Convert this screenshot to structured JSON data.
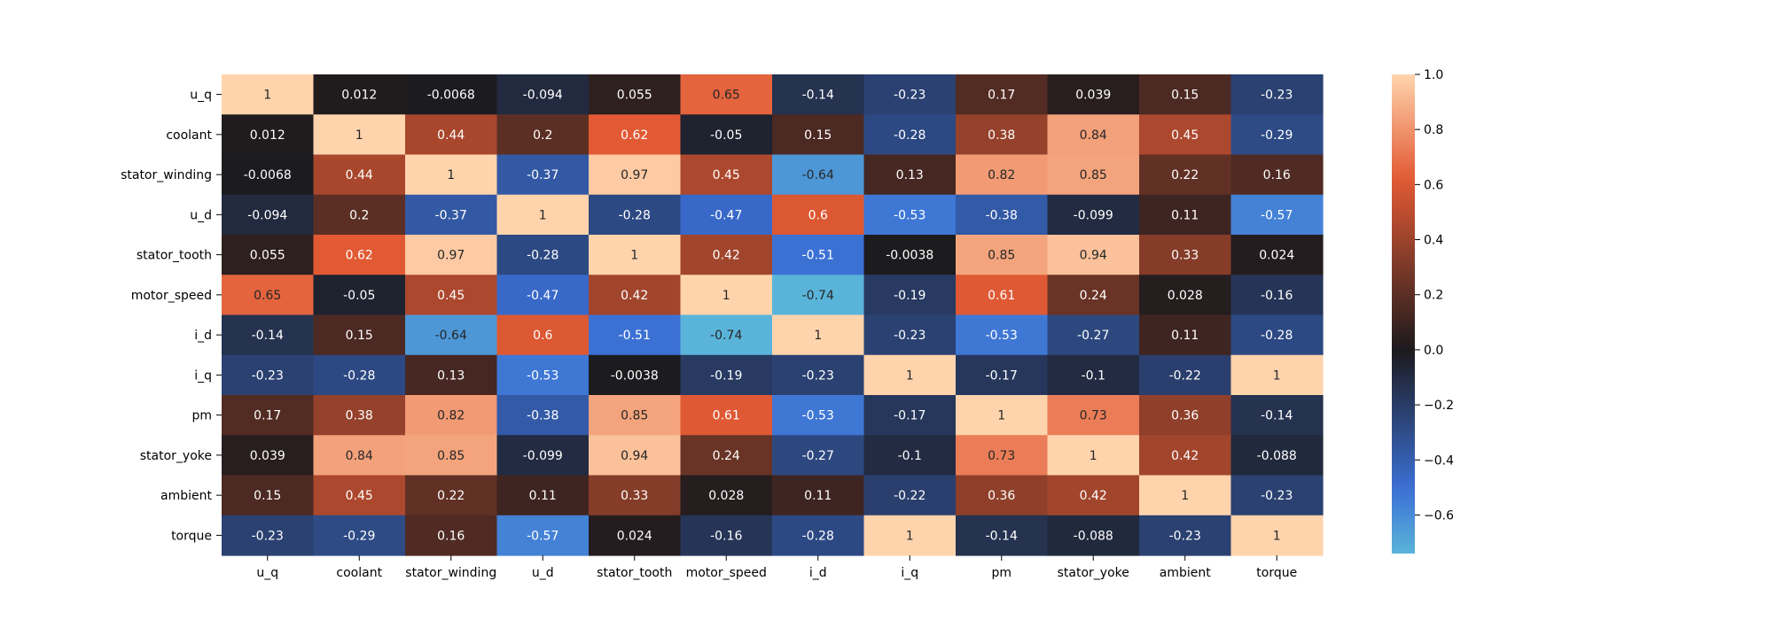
{
  "chart_data": {
    "type": "heatmap",
    "title": "",
    "xlabel": "",
    "ylabel": "",
    "x_categories": [
      "u_q",
      "coolant",
      "stator_winding",
      "u_d",
      "stator_tooth",
      "motor_speed",
      "i_d",
      "i_q",
      "pm",
      "stator_yoke",
      "ambient",
      "torque"
    ],
    "y_categories": [
      "u_q",
      "coolant",
      "stator_winding",
      "u_d",
      "stator_tooth",
      "motor_speed",
      "i_d",
      "i_q",
      "pm",
      "stator_yoke",
      "ambient",
      "torque"
    ],
    "values": [
      [
        1,
        0.012,
        -0.0068,
        -0.094,
        0.055,
        0.65,
        -0.14,
        -0.23,
        0.17,
        0.039,
        0.15,
        -0.23
      ],
      [
        0.012,
        1,
        0.44,
        0.2,
        0.62,
        -0.05,
        0.15,
        -0.28,
        0.38,
        0.84,
        0.45,
        -0.29
      ],
      [
        -0.0068,
        0.44,
        1,
        -0.37,
        0.97,
        0.45,
        -0.64,
        0.13,
        0.82,
        0.85,
        0.22,
        0.16
      ],
      [
        -0.094,
        0.2,
        -0.37,
        1,
        -0.28,
        -0.47,
        0.6,
        -0.53,
        -0.38,
        -0.099,
        0.11,
        -0.57
      ],
      [
        0.055,
        0.62,
        0.97,
        -0.28,
        1,
        0.42,
        -0.51,
        -0.0038,
        0.85,
        0.94,
        0.33,
        0.024
      ],
      [
        0.65,
        -0.05,
        0.45,
        -0.47,
        0.42,
        1,
        -0.74,
        -0.19,
        0.61,
        0.24,
        0.028,
        -0.16
      ],
      [
        -0.14,
        0.15,
        -0.64,
        0.6,
        -0.51,
        -0.74,
        1,
        -0.23,
        -0.53,
        -0.27,
        0.11,
        -0.28
      ],
      [
        -0.23,
        -0.28,
        0.13,
        -0.53,
        -0.0038,
        -0.19,
        -0.23,
        1,
        -0.17,
        -0.1,
        -0.22,
        1
      ],
      [
        0.17,
        0.38,
        0.82,
        -0.38,
        0.85,
        0.61,
        -0.53,
        -0.17,
        1,
        0.73,
        0.36,
        -0.14
      ],
      [
        0.039,
        0.84,
        0.85,
        -0.099,
        0.94,
        0.24,
        -0.27,
        -0.1,
        0.73,
        1,
        0.42,
        -0.088
      ],
      [
        0.15,
        0.45,
        0.22,
        0.11,
        0.33,
        0.028,
        0.11,
        -0.22,
        0.36,
        0.42,
        1,
        -0.23
      ],
      [
        -0.23,
        -0.29,
        0.16,
        -0.57,
        0.024,
        -0.16,
        -0.28,
        1,
        -0.14,
        -0.088,
        -0.23,
        1
      ]
    ],
    "colorbar": {
      "min": -0.74,
      "max": 1.0,
      "center": 0,
      "ticks": [
        1.0,
        0.8,
        0.6,
        0.4,
        0.2,
        0.0,
        -0.2,
        -0.4,
        -0.6
      ],
      "tick_labels": [
        "1.0",
        "0.8",
        "0.6",
        "0.4",
        "0.2",
        "0.0",
        "−0.2",
        "−0.4",
        "−0.6"
      ],
      "colormap": "icefire",
      "colors": {
        "negative_end": "#5ab4da",
        "negative_mid": "#3b6fd4",
        "center": "#1c1a1d",
        "positive_mid": "#e25a34",
        "positive_end": "#ffd4ad"
      }
    },
    "grid": false,
    "legend": "colorbar-right"
  }
}
